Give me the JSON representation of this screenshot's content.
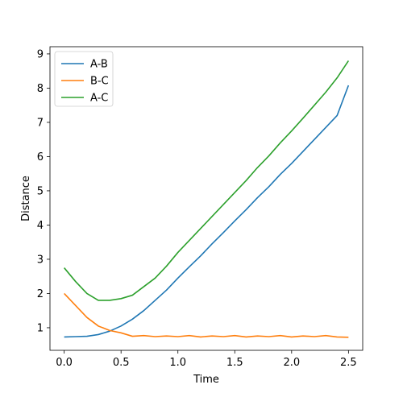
{
  "chart_data": {
    "type": "line",
    "xlabel": "Time",
    "ylabel": "Distance",
    "xlim": [
      -0.125,
      2.625
    ],
    "ylim": [
      0.34,
      9.21
    ],
    "xticks": [
      0.0,
      0.5,
      1.0,
      1.5,
      2.0,
      2.5
    ],
    "xtick_labels": [
      "0.0",
      "0.5",
      "1.0",
      "1.5",
      "2.0",
      "2.5"
    ],
    "yticks": [
      1,
      2,
      3,
      4,
      5,
      6,
      7,
      8,
      9
    ],
    "ytick_labels": [
      "1",
      "2",
      "3",
      "4",
      "5",
      "6",
      "7",
      "8",
      "9"
    ],
    "grid": false,
    "legend_position": "top-left",
    "series": [
      {
        "name": "A-B",
        "color": "#1f77b4",
        "x": [
          0.0,
          0.1,
          0.2,
          0.3,
          0.4,
          0.5,
          0.6,
          0.7,
          0.8,
          0.9,
          1.0,
          1.1,
          1.2,
          1.3,
          1.4,
          1.5,
          1.6,
          1.7,
          1.8,
          1.9,
          2.0,
          2.1,
          2.2,
          2.3,
          2.4,
          2.5
        ],
        "y": [
          0.73,
          0.74,
          0.75,
          0.8,
          0.9,
          1.05,
          1.25,
          1.5,
          1.8,
          2.1,
          2.45,
          2.78,
          3.1,
          3.45,
          3.78,
          4.12,
          4.45,
          4.8,
          5.12,
          5.48,
          5.8,
          6.15,
          6.5,
          6.85,
          7.2,
          8.08
        ]
      },
      {
        "name": "B-C",
        "color": "#ff7f0e",
        "x": [
          0.0,
          0.1,
          0.2,
          0.3,
          0.4,
          0.5,
          0.6,
          0.7,
          0.8,
          0.9,
          1.0,
          1.1,
          1.2,
          1.3,
          1.4,
          1.5,
          1.6,
          1.7,
          1.8,
          1.9,
          2.0,
          2.1,
          2.2,
          2.3,
          2.4,
          2.5
        ],
        "y": [
          2.0,
          1.65,
          1.3,
          1.05,
          0.92,
          0.85,
          0.75,
          0.77,
          0.74,
          0.76,
          0.74,
          0.77,
          0.73,
          0.76,
          0.74,
          0.77,
          0.73,
          0.76,
          0.74,
          0.77,
          0.73,
          0.76,
          0.74,
          0.77,
          0.73,
          0.72
        ]
      },
      {
        "name": "A-C",
        "color": "#2ca02c",
        "x": [
          0.0,
          0.1,
          0.2,
          0.3,
          0.4,
          0.5,
          0.6,
          0.7,
          0.8,
          0.9,
          1.0,
          1.1,
          1.2,
          1.3,
          1.4,
          1.5,
          1.6,
          1.7,
          1.8,
          1.9,
          2.0,
          2.1,
          2.2,
          2.3,
          2.4,
          2.5
        ],
        "y": [
          2.75,
          2.35,
          2.0,
          1.8,
          1.8,
          1.85,
          1.95,
          2.2,
          2.45,
          2.8,
          3.2,
          3.55,
          3.9,
          4.25,
          4.6,
          4.95,
          5.3,
          5.68,
          6.02,
          6.4,
          6.75,
          7.12,
          7.5,
          7.88,
          8.3,
          8.8
        ]
      }
    ]
  }
}
